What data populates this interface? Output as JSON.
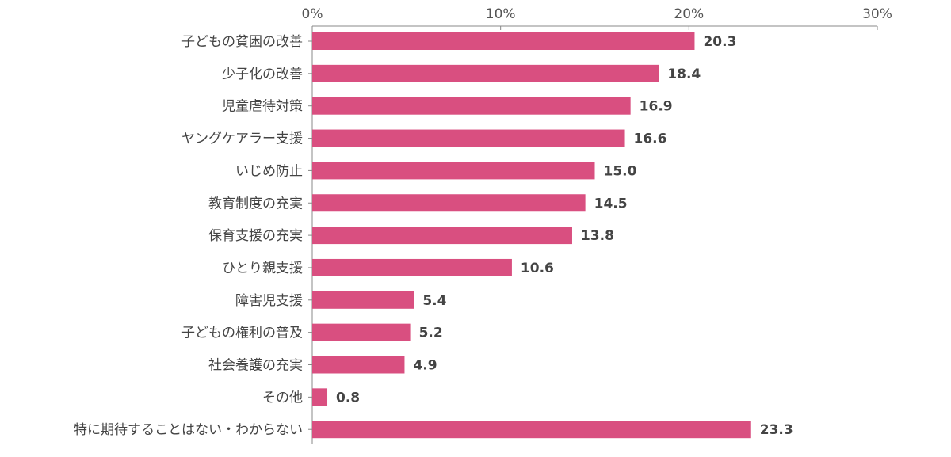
{
  "chart_data": {
    "type": "bar",
    "orientation": "horizontal",
    "title": "",
    "xlabel": "",
    "ylabel": "",
    "xlim": [
      0,
      30
    ],
    "ticks": [
      0,
      10,
      20,
      30
    ],
    "tick_labels": [
      "0%",
      "10%",
      "20%",
      "30%"
    ],
    "grid": false,
    "categories": [
      "子どもの貧困の改善",
      "少子化の改善",
      "児童虐待対策",
      "ヤングケアラー支援",
      "いじめ防止",
      "教育制度の充実",
      "保育支援の充実",
      "ひとり親支援",
      "障害児支援",
      "子どもの権利の普及",
      "社会養護の充実",
      "その他",
      "特に期待することはない・わからない"
    ],
    "values": [
      20.3,
      18.4,
      16.9,
      16.6,
      15.0,
      14.5,
      13.8,
      10.6,
      5.4,
      5.2,
      4.9,
      0.8,
      23.3
    ],
    "value_labels": [
      "20.3",
      "18.4",
      "16.9",
      "16.6",
      "15.0",
      "14.5",
      "13.8",
      "10.6",
      "5.4",
      "5.2",
      "4.9",
      "0.8",
      "23.3"
    ],
    "colors": {
      "bar": "#d94f80",
      "axis": "#888888"
    }
  }
}
